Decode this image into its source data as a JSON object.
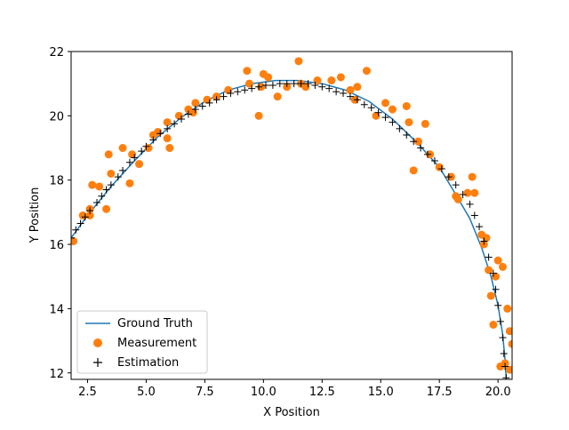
{
  "chart_data": {
    "type": "line",
    "title": "",
    "xlabel": "X Position",
    "ylabel": "Y Position",
    "xlim": [
      1.8,
      20.6
    ],
    "ylim": [
      11.8,
      22.0
    ],
    "xticks": [
      2.5,
      5.0,
      7.5,
      10.0,
      12.5,
      15.0,
      17.5,
      20.0
    ],
    "xtick_labels": [
      "2.5",
      "5.0",
      "7.5",
      "10.0",
      "12.5",
      "15.0",
      "17.5",
      "20.0"
    ],
    "yticks": [
      12,
      14,
      16,
      18,
      20,
      22
    ],
    "ytick_labels": [
      "12",
      "14",
      "16",
      "18",
      "20",
      "22"
    ],
    "grid": false,
    "legend_position": "lower-left",
    "series": [
      {
        "name": "Ground Truth",
        "kind": "line",
        "color": "#1f77b4",
        "x": [
          1.8,
          2.5,
          3.5,
          4.5,
          5.5,
          6.5,
          7.5,
          8.5,
          9.5,
          10.5,
          11.5,
          12.5,
          13.5,
          14.5,
          15.5,
          16.5,
          17.5,
          18.2,
          18.8,
          19.3,
          19.7,
          20.0,
          20.2,
          20.3,
          20.35
        ],
        "y": [
          16.2,
          16.9,
          17.8,
          18.6,
          19.35,
          19.95,
          20.45,
          20.8,
          21.0,
          21.1,
          21.1,
          21.0,
          20.8,
          20.45,
          19.9,
          19.2,
          18.4,
          17.55,
          16.8,
          15.9,
          15.0,
          14.1,
          13.2,
          12.4,
          11.8
        ]
      },
      {
        "name": "Measurement",
        "kind": "scatter",
        "color": "#ff7f0e",
        "x": [
          1.9,
          2.3,
          2.6,
          2.6,
          2.7,
          3.0,
          3.3,
          3.4,
          3.5,
          4.0,
          4.3,
          4.4,
          4.7,
          5.1,
          5.3,
          5.5,
          5.9,
          5.9,
          6.0,
          6.4,
          6.8,
          7.0,
          7.1,
          7.6,
          8.0,
          8.5,
          9.3,
          9.4,
          9.8,
          9.9,
          10.0,
          10.2,
          10.6,
          11.0,
          11.5,
          11.6,
          11.8,
          12.3,
          12.9,
          13.3,
          13.7,
          13.9,
          14.0,
          14.4,
          14.8,
          15.2,
          15.5,
          16.1,
          16.2,
          16.4,
          16.6,
          16.9,
          17.1,
          17.5,
          18.0,
          18.2,
          18.3,
          18.7,
          18.9,
          19.0,
          19.3,
          19.4,
          19.5,
          19.6,
          19.7,
          19.8,
          19.9,
          20.0,
          20.1,
          20.2,
          20.3,
          20.4,
          20.5,
          20.5,
          20.6
        ],
        "y": [
          16.1,
          16.9,
          16.9,
          17.1,
          17.85,
          17.8,
          17.1,
          18.8,
          18.2,
          19.0,
          17.9,
          18.8,
          18.5,
          19.0,
          19.4,
          19.5,
          19.3,
          19.8,
          19.0,
          20.0,
          20.2,
          20.1,
          20.4,
          20.5,
          20.6,
          20.8,
          21.4,
          21.0,
          20.0,
          20.9,
          21.3,
          21.2,
          20.6,
          20.9,
          21.7,
          21.0,
          20.9,
          21.1,
          21.1,
          21.2,
          20.8,
          20.5,
          20.9,
          21.4,
          20.0,
          20.4,
          20.2,
          20.3,
          19.8,
          18.3,
          19.2,
          19.75,
          18.8,
          18.4,
          18.1,
          17.5,
          17.4,
          17.6,
          18.1,
          17.6,
          16.3,
          16.0,
          16.2,
          15.2,
          14.4,
          13.5,
          15.0,
          15.5,
          12.2,
          15.3,
          12.3,
          14.0,
          13.3,
          12.1,
          12.9
        ]
      },
      {
        "name": "Estimation",
        "kind": "marker",
        "color": "#000000",
        "x": [
          1.8,
          2.0,
          2.2,
          2.4,
          2.6,
          2.9,
          3.1,
          3.3,
          3.5,
          3.8,
          4.0,
          4.3,
          4.5,
          4.8,
          5.0,
          5.3,
          5.6,
          5.9,
          6.2,
          6.5,
          6.8,
          7.1,
          7.4,
          7.7,
          8.0,
          8.3,
          8.6,
          8.9,
          9.2,
          9.5,
          9.8,
          10.1,
          10.4,
          10.7,
          11.0,
          11.3,
          11.6,
          11.9,
          12.2,
          12.5,
          12.8,
          13.1,
          13.4,
          13.7,
          14.0,
          14.3,
          14.6,
          14.9,
          15.2,
          15.5,
          15.8,
          16.1,
          16.4,
          16.7,
          17.0,
          17.3,
          17.6,
          17.9,
          18.2,
          18.5,
          18.8,
          19.0,
          19.2,
          19.4,
          19.6,
          19.8,
          19.9,
          20.0,
          20.1,
          20.2,
          20.25,
          20.3,
          20.35
        ],
        "y": [
          16.2,
          16.45,
          16.65,
          16.85,
          17.05,
          17.3,
          17.5,
          17.7,
          17.85,
          18.1,
          18.3,
          18.55,
          18.7,
          18.9,
          19.05,
          19.25,
          19.45,
          19.6,
          19.75,
          19.9,
          20.05,
          20.2,
          20.3,
          20.4,
          20.5,
          20.6,
          20.7,
          20.75,
          20.8,
          20.85,
          20.9,
          20.95,
          20.95,
          21.0,
          21.0,
          21.0,
          21.0,
          21.0,
          20.95,
          20.9,
          20.85,
          20.75,
          20.7,
          20.6,
          20.5,
          20.35,
          20.25,
          20.1,
          19.95,
          19.8,
          19.6,
          19.4,
          19.2,
          19.0,
          18.8,
          18.6,
          18.35,
          18.1,
          17.85,
          17.55,
          17.25,
          16.9,
          16.55,
          16.1,
          15.6,
          15.1,
          14.6,
          14.1,
          13.6,
          13.1,
          12.6,
          12.2,
          11.85
        ]
      }
    ]
  }
}
